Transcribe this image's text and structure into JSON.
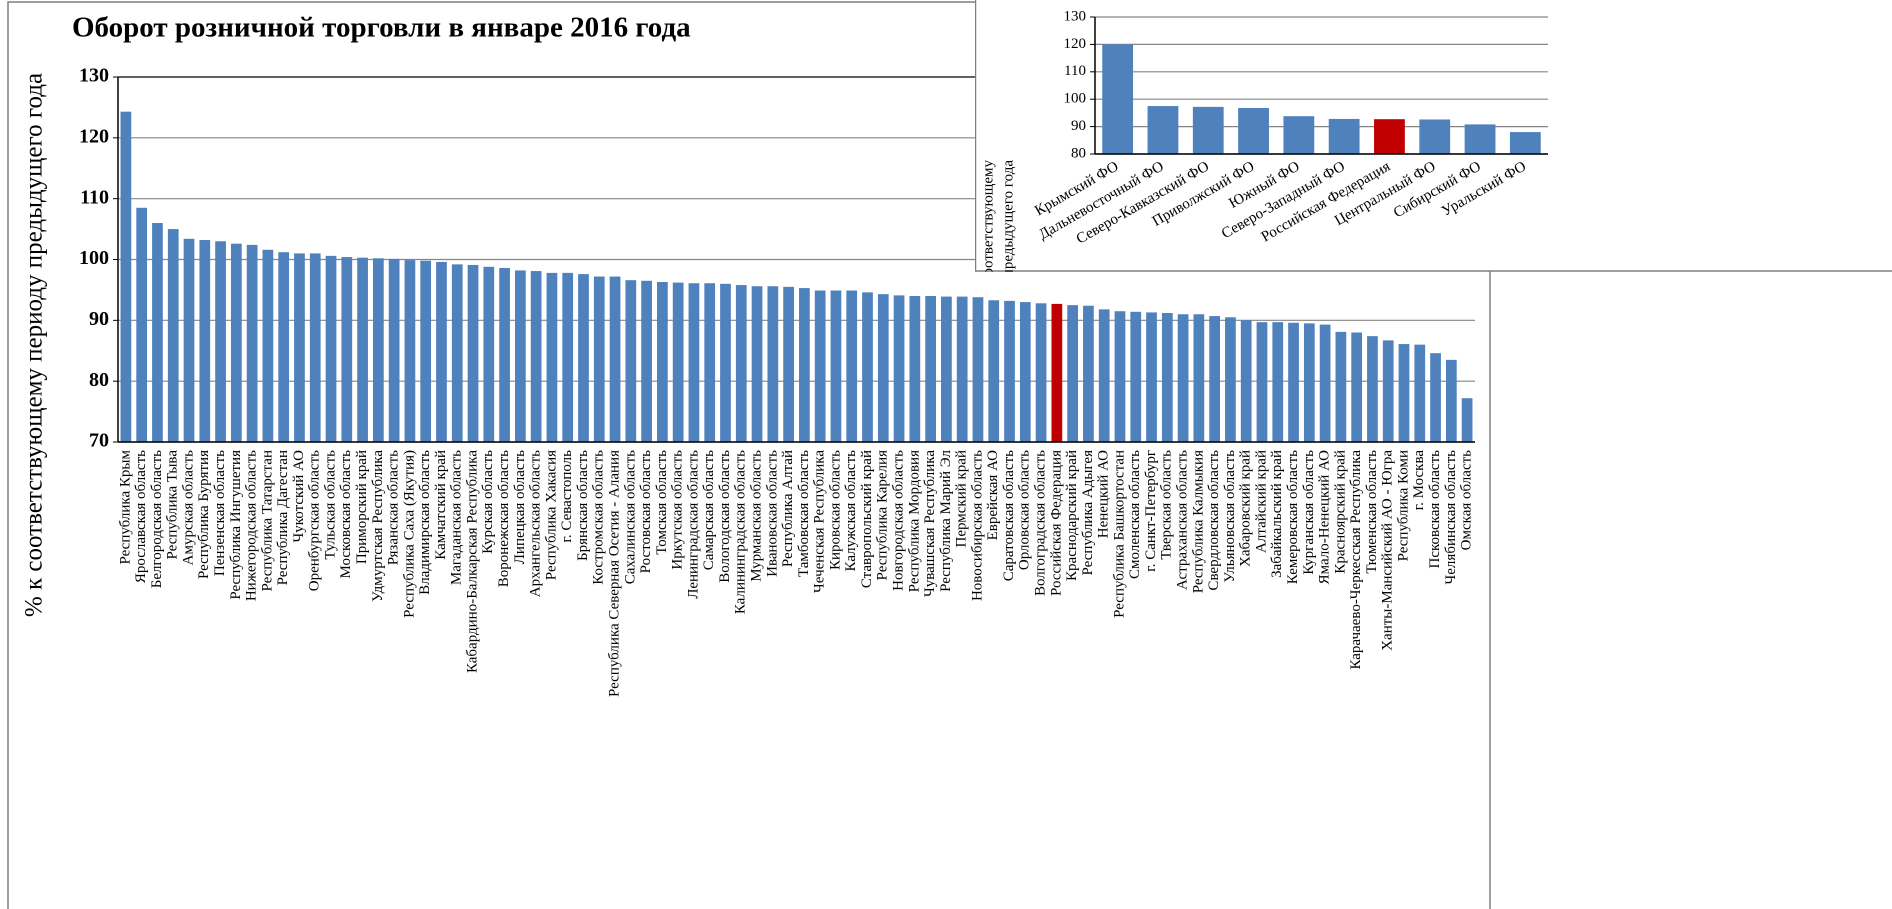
{
  "chart_data": [
    {
      "type": "bar",
      "title": "Оборот розничной торговли в январе 2016 года",
      "ylabel": "% к соответствующему периоду предыдущего года",
      "categories": [
        "Республика Крым",
        "Ярославская область",
        "Белгородская область",
        "Республика Тыва",
        "Амурская область",
        "Республика Бурятия",
        "Пензенская область",
        "Республика Ингушетия",
        "Нижегородская область",
        "Республика Татарстан",
        "Республика Дагестан",
        "Чукотский АО",
        "Оренбургская область",
        "Тульская область",
        "Московская область",
        "Приморский край",
        "Удмуртская Республика",
        "Рязанская область",
        "Республика Саха (Якутия)",
        "Владимирская область",
        "Камчатский край",
        "Магаданская область",
        "Кабардино-Балкарская Республика",
        "Курская область",
        "Воронежская область",
        "Липецкая область",
        "Архангельская область",
        "Республика Хакасия",
        "г. Севастополь",
        "Брянская область",
        "Костромская область",
        "Республика Северная Осетия - Алания",
        "Сахалинская область",
        "Ростовская область",
        "Томская область",
        "Иркутская область",
        "Ленинградская область",
        "Самарская область",
        "Вологодская область",
        "Калининградская область",
        "Мурманская область",
        "Ивановская область",
        "Республика Алтай",
        "Тамбовская область",
        "Чеченская Республика",
        "Кировская область",
        "Калужская область",
        "Ставропольский край",
        "Республика Карелия",
        "Новгородская область",
        "Республика Мордовия",
        "Чувашская Республика",
        "Республика Марий Эл",
        "Пермский край",
        "Новосибирская область",
        "Еврейская АО",
        "Саратовская область",
        "Орловская область",
        "Волгоградская область",
        "Российская Федерация",
        "Краснодарский край",
        "Республика Адыгея",
        "Ненецкий АО",
        "Республика Башкортостан",
        "Смоленская область",
        "г. Санкт-Петербург",
        "Тверская область",
        "Астраханская область",
        "Республика Калмыкия",
        "Свердловская область",
        "Ульяновская область",
        "Хабаровский край",
        "Алтайский край",
        "Забайкальский край",
        "Кемеровская область",
        "Курганская область",
        "Ямало-Ненецкий АО",
        "Красноярский край",
        "Карачаево-Черкесская Республика",
        "Тюменская область",
        "Ханты-Мансийский АО - Югра",
        "Республика Коми",
        "г. Москва",
        "Псковская область",
        "Челябинская область",
        "Омская область"
      ],
      "values": [
        124.3,
        108.5,
        106,
        105,
        103.4,
        103.2,
        103,
        102.6,
        102.4,
        101.6,
        101.2,
        101,
        101,
        100.6,
        100.4,
        100.3,
        100.2,
        100.1,
        99.9,
        99.8,
        99.6,
        99.2,
        99.1,
        98.8,
        98.6,
        98.2,
        98.1,
        97.8,
        97.8,
        97.6,
        97.2,
        97.2,
        96.6,
        96.5,
        96.3,
        96.2,
        96.1,
        96.1,
        96,
        95.8,
        95.6,
        95.6,
        95.5,
        95.3,
        94.9,
        94.9,
        94.9,
        94.6,
        94.3,
        94.1,
        94,
        94,
        93.9,
        93.9,
        93.8,
        93.3,
        93.2,
        93,
        92.8,
        92.7,
        92.5,
        92.4,
        91.8,
        91.5,
        91.4,
        91.3,
        91.2,
        91,
        91,
        90.7,
        90.5,
        90,
        89.7,
        89.7,
        89.6,
        89.5,
        89.3,
        88.1,
        88,
        87.4,
        86.7,
        86.1,
        86,
        84.6,
        83.5,
        77.2
      ],
      "colors": [
        "#4f81bd",
        "#4f81bd",
        "#4f81bd",
        "#4f81bd",
        "#4f81bd",
        "#4f81bd",
        "#4f81bd",
        "#4f81bd",
        "#4f81bd",
        "#4f81bd",
        "#4f81bd",
        "#4f81bd",
        "#4f81bd",
        "#4f81bd",
        "#4f81bd",
        "#4f81bd",
        "#4f81bd",
        "#4f81bd",
        "#4f81bd",
        "#4f81bd",
        "#4f81bd",
        "#4f81bd",
        "#4f81bd",
        "#4f81bd",
        "#4f81bd",
        "#4f81bd",
        "#4f81bd",
        "#4f81bd",
        "#4f81bd",
        "#4f81bd",
        "#4f81bd",
        "#4f81bd",
        "#4f81bd",
        "#4f81bd",
        "#4f81bd",
        "#4f81bd",
        "#4f81bd",
        "#4f81bd",
        "#4f81bd",
        "#4f81bd",
        "#4f81bd",
        "#4f81bd",
        "#4f81bd",
        "#4f81bd",
        "#4f81bd",
        "#4f81bd",
        "#4f81bd",
        "#4f81bd",
        "#4f81bd",
        "#4f81bd",
        "#4f81bd",
        "#4f81bd",
        "#4f81bd",
        "#4f81bd",
        "#4f81bd",
        "#4f81bd",
        "#4f81bd",
        "#4f81bd",
        "#4f81bd",
        "#c00000",
        "#4f81bd",
        "#4f81bd",
        "#4f81bd",
        "#4f81bd",
        "#4f81bd",
        "#4f81bd",
        "#4f81bd",
        "#4f81bd",
        "#4f81bd",
        "#4f81bd",
        "#4f81bd",
        "#4f81bd",
        "#4f81bd",
        "#4f81bd",
        "#4f81bd",
        "#4f81bd",
        "#4f81bd",
        "#4f81bd",
        "#4f81bd",
        "#4f81bd",
        "#4f81bd",
        "#4f81bd",
        "#4f81bd",
        "#4f81bd",
        "#4f81bd",
        "#4f81bd"
      ],
      "ylim": [
        70,
        130
      ],
      "yticks": [
        70,
        80,
        90,
        100,
        110,
        120,
        130
      ],
      "grid": true
    },
    {
      "type": "bar",
      "ylabel_lines": [
        "% к соответствующему",
        "периоду предыдущего года"
      ],
      "categories": [
        "Крымский ФО",
        "Дальневосточный ФО",
        "Северо-Кавказский ФО",
        "Приволжский ФО",
        "Южный ФО",
        "Северо-Западный ФО",
        "Российская Федерация",
        "Центральный ФО",
        "Сибирский ФО",
        "Уральский ФО"
      ],
      "values": [
        120,
        97.5,
        97.2,
        96.8,
        93.8,
        92.8,
        92.7,
        92.6,
        90.8,
        88
      ],
      "colors": [
        "#4f81bd",
        "#4f81bd",
        "#4f81bd",
        "#4f81bd",
        "#4f81bd",
        "#4f81bd",
        "#c00000",
        "#4f81bd",
        "#4f81bd",
        "#4f81bd"
      ],
      "ylim": [
        80,
        130
      ],
      "yticks": [
        80,
        90,
        100,
        110,
        120,
        130
      ],
      "grid": true
    }
  ]
}
